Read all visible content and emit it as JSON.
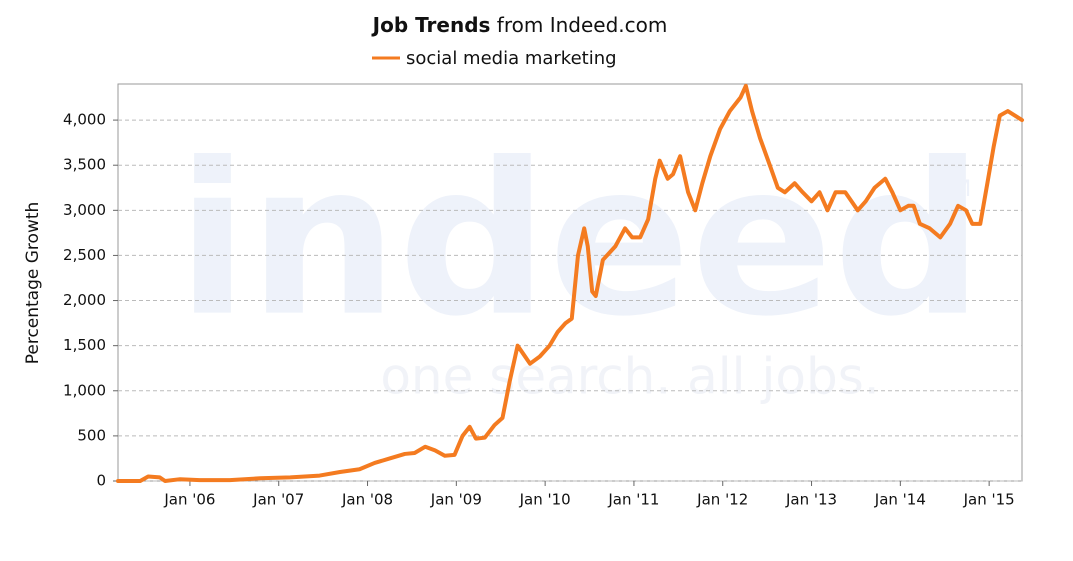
{
  "chart_data": {
    "type": "line",
    "title": "Job Trends",
    "title_suffix": "from Indeed.com",
    "y_label": "Percentage Growth",
    "watermark": {
      "logo": "indeed",
      "tagline": "one search. all jobs.",
      "mark": "TM"
    },
    "xlim": [
      2005.19,
      2015.37
    ],
    "xticks": [
      {
        "value": 2006,
        "label": "Jan '06"
      },
      {
        "value": 2007,
        "label": "Jan '07"
      },
      {
        "value": 2008,
        "label": "Jan '08"
      },
      {
        "value": 2009,
        "label": "Jan '09"
      },
      {
        "value": 2010,
        "label": "Jan '10"
      },
      {
        "value": 2011,
        "label": "Jan '11"
      },
      {
        "value": 2012,
        "label": "Jan '12"
      },
      {
        "value": 2013,
        "label": "Jan '13"
      },
      {
        "value": 2014,
        "label": "Jan '14"
      },
      {
        "value": 2015,
        "label": "Jan '15"
      }
    ],
    "ylim": [
      0,
      4400
    ],
    "yticks": [
      0,
      500,
      {
        "value": 1000,
        "label": "1,000"
      },
      {
        "value": 1500,
        "label": "1,500"
      },
      {
        "value": 2000,
        "label": "2,000"
      },
      {
        "value": 2500,
        "label": "2,500"
      },
      {
        "value": 3000,
        "label": "3,000"
      },
      {
        "value": 3500,
        "label": "3,500"
      },
      {
        "value": 4000,
        "label": "4,000"
      }
    ],
    "grid": true,
    "x": [
      2005.19,
      2005.44,
      2005.53,
      2005.66,
      2005.72,
      2005.89,
      2006.11,
      2006.45,
      2006.79,
      2007.13,
      2007.46,
      2007.69,
      2007.91,
      2008.08,
      2008.25,
      2008.42,
      2008.53,
      2008.65,
      2008.76,
      2008.87,
      2008.98,
      2009.07,
      2009.15,
      2009.22,
      2009.32,
      2009.43,
      2009.52,
      2009.6,
      2009.69,
      2009.76,
      2009.83,
      2009.94,
      2010.05,
      2010.14,
      2010.23,
      2010.3,
      2010.37,
      2010.44,
      2010.48,
      2010.53,
      2010.57,
      2010.65,
      2010.79,
      2010.9,
      2010.98,
      2011.07,
      2011.16,
      2011.24,
      2011.29,
      2011.38,
      2011.44,
      2011.52,
      2011.61,
      2011.69,
      2011.77,
      2011.86,
      2011.97,
      2012.08,
      2012.2,
      2012.26,
      2012.33,
      2012.42,
      2012.53,
      2012.62,
      2012.7,
      2012.81,
      2012.9,
      2013.0,
      2013.09,
      2013.18,
      2013.27,
      2013.38,
      2013.45,
      2013.52,
      2013.61,
      2013.71,
      2013.83,
      2013.91,
      2014.0,
      2014.09,
      2014.15,
      2014.22,
      2014.33,
      2014.45,
      2014.56,
      2014.65,
      2014.74,
      2014.81,
      2014.9,
      2014.98,
      2015.05,
      2015.12,
      2015.21,
      2015.29,
      2015.37
    ],
    "series": [
      {
        "name": "social media marketing",
        "color": "#f47b20",
        "values": [
          0,
          0,
          50,
          40,
          0,
          20,
          10,
          10,
          30,
          40,
          60,
          100,
          130,
          200,
          250,
          300,
          310,
          380,
          340,
          280,
          290,
          500,
          600,
          470,
          480,
          620,
          700,
          1100,
          1500,
          1400,
          1300,
          1380,
          1500,
          1650,
          1750,
          1800,
          2500,
          2800,
          2600,
          2100,
          2050,
          2450,
          2600,
          2800,
          2700,
          2700,
          2900,
          3350,
          3550,
          3350,
          3400,
          3600,
          3200,
          3000,
          3300,
          3600,
          3900,
          4100,
          4250,
          4380,
          4100,
          3800,
          3500,
          3250,
          3200,
          3300,
          3200,
          3100,
          3200,
          3000,
          3200,
          3200,
          3100,
          3000,
          3100,
          3250,
          3350,
          3200,
          3000,
          3050,
          3050,
          2850,
          2800,
          2700,
          2850,
          3050,
          3000,
          2850,
          2850,
          3300,
          3700,
          4050,
          4100,
          4050,
          4000
        ]
      }
    ]
  }
}
